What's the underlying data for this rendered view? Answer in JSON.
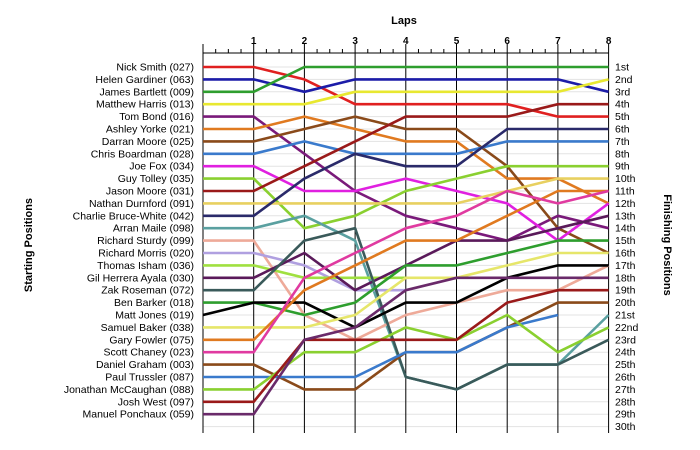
{
  "chart_data": {
    "type": "line",
    "title": "",
    "xlabel": "Laps",
    "ylabel_left": "Starting Positions",
    "ylabel_right": "Finishing Positions",
    "laps": [
      1,
      2,
      3,
      4,
      5,
      6,
      7,
      8
    ],
    "finishing_positions": [
      "1st",
      "2nd",
      "3rd",
      "4th",
      "5th",
      "6th",
      "7th",
      "8th",
      "9th",
      "10th",
      "11th",
      "12th",
      "13th",
      "14th",
      "15th",
      "16th",
      "17th",
      "18th",
      "19th",
      "20th",
      "21st",
      "22nd",
      "23rd",
      "24th",
      "25th",
      "26th",
      "27th",
      "28th",
      "29th",
      "30th"
    ],
    "series": [
      {
        "name": "Nick Smith (027)",
        "color": "#e02020",
        "positions": [
          1,
          2,
          4,
          4,
          4,
          4,
          5,
          5
        ]
      },
      {
        "name": "Helen Gardiner (063)",
        "color": "#1c1ca8",
        "positions": [
          2,
          3,
          2,
          2,
          2,
          2,
          2,
          3
        ]
      },
      {
        "name": "James Bartlett (009)",
        "color": "#2e9e2e",
        "positions": [
          3,
          1,
          1,
          1,
          1,
          1,
          1,
          1
        ]
      },
      {
        "name": "Matthew Harris (013)",
        "color": "#e8e830",
        "positions": [
          4,
          4,
          3,
          3,
          3,
          3,
          3,
          2
        ]
      },
      {
        "name": "Tom Bond (016)",
        "color": "#7a1a7a",
        "positions": [
          5,
          8,
          11,
          13,
          14,
          15,
          13,
          14
        ]
      },
      {
        "name": "Ashley Yorke (021)",
        "color": "#e07a20",
        "positions": [
          6,
          5,
          6,
          7,
          7,
          10,
          10,
          12
        ]
      },
      {
        "name": "Darran Moore (025)",
        "color": "#8a4a1a",
        "positions": [
          7,
          6,
          5,
          6,
          6,
          9,
          14,
          16
        ]
      },
      {
        "name": "Chris Boardman (028)",
        "color": "#3a7acc",
        "positions": [
          8,
          7,
          8,
          8,
          8,
          7,
          7,
          7
        ]
      },
      {
        "name": "Joe Fox (034)",
        "color": "#e020e0",
        "positions": [
          9,
          11,
          11,
          10,
          11,
          12,
          15,
          12
        ]
      },
      {
        "name": "Guy Tolley (035)",
        "color": "#8ad030",
        "positions": [
          10,
          14,
          13,
          11,
          10,
          9,
          9,
          9
        ]
      },
      {
        "name": "Jason Moore (031)",
        "color": "#9a1a1a",
        "positions": [
          11,
          9,
          7,
          5,
          5,
          5,
          4,
          4
        ]
      },
      {
        "name": "Nathan Durnford (091)",
        "color": "#e8d060",
        "positions": [
          12,
          12,
          12,
          12,
          12,
          11,
          10,
          10
        ]
      },
      {
        "name": "Charlie Bruce-White (042)",
        "color": "#2a2a6a",
        "positions": [
          13,
          10,
          8,
          9,
          9,
          6,
          6,
          6
        ]
      },
      {
        "name": "Arran Maile (098)",
        "color": "#5aa0a0",
        "positions": [
          14,
          13,
          15,
          26,
          27,
          25,
          25,
          21
        ]
      },
      {
        "name": "Richard Sturdy (099)",
        "color": "#eeaa99",
        "positions": [
          15,
          21,
          23,
          21,
          20,
          19,
          19,
          17
        ]
      },
      {
        "name": "Richard Morris (020)",
        "color": "#b0a0e0",
        "positions": [
          16,
          17,
          19,
          19
        ]
      },
      {
        "name": "Thomas Isham (036)",
        "color": "#a0e040",
        "positions": [
          17,
          18,
          18,
          18
        ]
      },
      {
        "name": "Gil Herrera Ayala (030)",
        "color": "#5a1a5a",
        "positions": [
          18,
          16,
          19,
          17,
          15,
          15,
          14,
          13
        ]
      },
      {
        "name": "Zak Roseman (072)",
        "color": "#3a5a5a",
        "positions": [
          19,
          15,
          14,
          26,
          27,
          25,
          25,
          23
        ]
      },
      {
        "name": "Ben Barker (018)",
        "color": "#2e9e2e",
        "positions": [
          20,
          21,
          20,
          17,
          17,
          16,
          15,
          15
        ]
      },
      {
        "name": "Matt Jones (019)",
        "color": "#000000",
        "positions": [
          20,
          20,
          22,
          20,
          20,
          18,
          17,
          17
        ]
      },
      {
        "name": "Samuel Baker (038)",
        "color": "#e6e66a",
        "positions": [
          22,
          22,
          21,
          18,
          18,
          17,
          16,
          16
        ]
      },
      {
        "name": "Gary Fowler (075)",
        "color": "#e07a20",
        "positions": [
          23,
          19,
          17,
          15,
          15,
          13,
          11,
          11
        ]
      },
      {
        "name": "Scott Chaney (023)",
        "color": "#e03aa0",
        "positions": [
          24,
          18,
          16,
          14,
          13,
          11,
          12,
          11
        ]
      },
      {
        "name": "Daniel Graham (003)",
        "color": "#8a4a1a",
        "positions": [
          25,
          27,
          27,
          24,
          24,
          22,
          20,
          20
        ]
      },
      {
        "name": "Paul Trussler (087)",
        "color": "#3a7acc",
        "positions": [
          26,
          26,
          26,
          24,
          24,
          22,
          21
        ]
      },
      {
        "name": "Jonathan McCaughan (088)",
        "color": "#8ad030",
        "positions": [
          27,
          24,
          24,
          22,
          23,
          21,
          24,
          22
        ]
      },
      {
        "name": "Josh West (097)",
        "color": "#9a1a1a",
        "positions": [
          28,
          23,
          23,
          23,
          23,
          20,
          19,
          19
        ]
      },
      {
        "name": "Manuel Ponchaux (059)",
        "color": "#6a2a6a",
        "positions": [
          29,
          23,
          22,
          19,
          18,
          18,
          18,
          18
        ]
      }
    ]
  }
}
